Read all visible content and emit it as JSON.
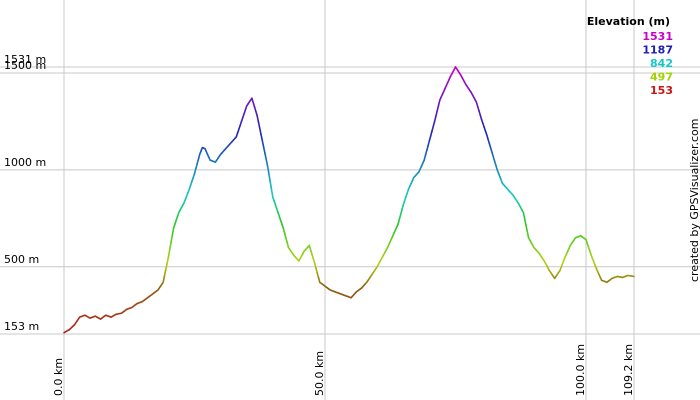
{
  "chart_data": {
    "type": "line",
    "xlabel": "",
    "ylabel": "",
    "x_unit": "km",
    "y_unit": "m",
    "xlim": [
      0,
      109.2
    ],
    "ylim": [
      153,
      1531
    ],
    "grid": true,
    "x_ticks": [
      {
        "value": 0,
        "label": "0.0 km"
      },
      {
        "value": 50,
        "label": "50.0 km"
      },
      {
        "value": 100,
        "label": "100.0 km"
      },
      {
        "value": 109.2,
        "label": "109.2 km"
      }
    ],
    "y_ticks": [
      {
        "value": 153,
        "label": "153 m"
      },
      {
        "value": 500,
        "label": "500 m"
      },
      {
        "value": 1000,
        "label": "1000 m"
      },
      {
        "value": 1500,
        "label": "1500 m"
      },
      {
        "value": 1531,
        "label": "1531 m"
      }
    ],
    "legend": {
      "title": "Elevation (m)",
      "placement": "top-right",
      "entries": [
        {
          "label": "1531",
          "color": "#c800c8"
        },
        {
          "label": "1187",
          "color": "#1e1eb4"
        },
        {
          "label": "842",
          "color": "#14c8c8"
        },
        {
          "label": "497",
          "color": "#a0d200"
        },
        {
          "label": "153",
          "color": "#c81414"
        }
      ]
    },
    "color_scale": [
      {
        "elevation": 153,
        "color": "#b41e1e"
      },
      {
        "elevation": 400,
        "color": "#8c6414"
      },
      {
        "elevation": 520,
        "color": "#b4d214"
      },
      {
        "elevation": 720,
        "color": "#28c828"
      },
      {
        "elevation": 880,
        "color": "#14c8c8"
      },
      {
        "elevation": 1190,
        "color": "#1e28b4"
      },
      {
        "elevation": 1531,
        "color": "#c800c8"
      }
    ],
    "series": [
      {
        "x": [
          0,
          1,
          2,
          3,
          4,
          5,
          6,
          7,
          8,
          9,
          10,
          11,
          12,
          13,
          14,
          15,
          16,
          17,
          18,
          19,
          20,
          21,
          22,
          23,
          24,
          25,
          26,
          26.5,
          27,
          28,
          29,
          30,
          31,
          32,
          33,
          34,
          35,
          36,
          37,
          38,
          39,
          40,
          41,
          42,
          43,
          44,
          45,
          46,
          47,
          48,
          49,
          50,
          51,
          52,
          53,
          54,
          55,
          56,
          57,
          58,
          59,
          60,
          61,
          62,
          63,
          64,
          65,
          66,
          67,
          68,
          69,
          70,
          71,
          72,
          73,
          74,
          75,
          76,
          77,
          78,
          79,
          80,
          81,
          82,
          83,
          84,
          85,
          86,
          87,
          88,
          89,
          90,
          91,
          92,
          93,
          94,
          95,
          96,
          97,
          98,
          99,
          100,
          101,
          102,
          103,
          104,
          105,
          106,
          107,
          108,
          109.2
        ],
        "y": [
          160,
          175,
          200,
          240,
          250,
          235,
          245,
          230,
          250,
          240,
          255,
          260,
          280,
          290,
          310,
          320,
          340,
          360,
          380,
          420,
          550,
          700,
          780,
          830,
          900,
          980,
          1080,
          1115,
          1110,
          1050,
          1040,
          1080,
          1110,
          1140,
          1170,
          1250,
          1330,
          1370,
          1280,
          1150,
          1020,
          860,
          780,
          700,
          600,
          560,
          530,
          580,
          610,
          520,
          420,
          400,
          380,
          370,
          360,
          350,
          340,
          370,
          390,
          420,
          460,
          500,
          550,
          600,
          660,
          720,
          820,
          900,
          960,
          990,
          1050,
          1150,
          1250,
          1360,
          1420,
          1480,
          1531,
          1490,
          1440,
          1400,
          1350,
          1260,
          1180,
          1090,
          1000,
          930,
          900,
          870,
          830,
          780,
          650,
          600,
          570,
          530,
          480,
          440,
          480,
          550,
          610,
          650,
          660,
          640,
          560,
          490,
          430,
          420,
          440,
          450,
          445,
          455,
          450
        ]
      }
    ],
    "credit": "created by GPSVisualizer.com"
  }
}
